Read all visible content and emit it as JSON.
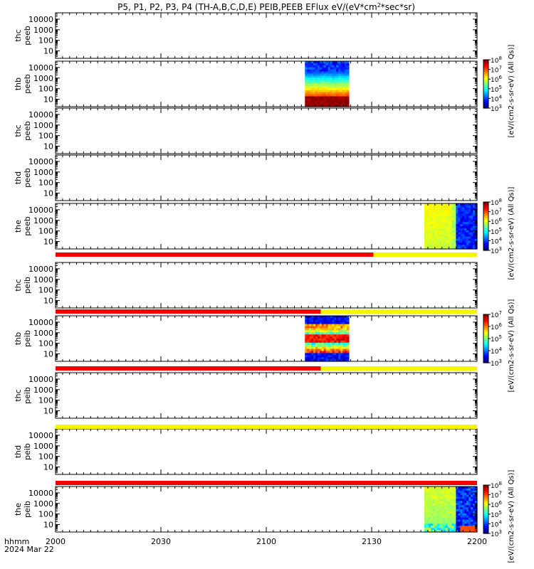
{
  "title": "P5, P1, P2, P3, P4 (TH-A,B,C,D,E) PEIB,PEEB EFlux eV/(eV*cm^2*sec*sr)",
  "title_parts": {
    "pre": "P5, P1, P2, P3, P4 (TH-A,B,C,D,E) PEIB,PEEB EFlux eV/(eV*cm",
    "sup": "2",
    "post": "*sec*sr)"
  },
  "time_axis": {
    "label_line1": "hhmm",
    "label_line2": "2024 Mar 22",
    "ticks": [
      "2000",
      "2030",
      "2100",
      "2130",
      "2200"
    ],
    "tick_minutes": [
      0,
      30,
      60,
      90,
      120
    ],
    "range_minutes": [
      0,
      120
    ]
  },
  "colors": {
    "mode_red": "#ee0000",
    "mode_yellow": "#f5f500",
    "axis": "#000000"
  },
  "chart_data": {
    "type": "heatmap",
    "x_units": "minutes after 20:00 UT",
    "y_scale": "log",
    "y_ticks": [
      "10",
      "100",
      "1000",
      "10000"
    ],
    "y_tick_values": [
      10,
      100,
      1000,
      10000
    ],
    "panels": [
      {
        "probe": "thc",
        "product": "peeb",
        "label": [
          "thc",
          "peeb"
        ],
        "data_span": null,
        "data_style": null
      },
      {
        "probe": "thb",
        "product": "peeb",
        "label": [
          "thb",
          "peeb"
        ],
        "data_span": [
          71,
          83.5
        ],
        "data_style": "peeb_b",
        "mode_bar": null
      },
      {
        "probe": "thc",
        "product": "peeb",
        "label": [
          "thc",
          "peeb"
        ],
        "data_span": null
      },
      {
        "probe": "thd",
        "product": "peeb",
        "label": [
          "thd",
          "peeb"
        ],
        "data_span": null
      },
      {
        "probe": "the",
        "product": "peeb",
        "label": [
          "the",
          "peeb"
        ],
        "data_span": [
          105,
          120
        ],
        "data_style": "peeb_e",
        "mode_bar": [
          {
            "from": 0,
            "to": 90.5,
            "color": "red"
          },
          {
            "from": 90.5,
            "to": 120,
            "color": "yellow"
          }
        ]
      },
      {
        "probe": "thc",
        "product": "peib",
        "label": [
          "thc",
          "peib"
        ],
        "data_span": null,
        "mode_bar": [
          {
            "from": 0,
            "to": 75.5,
            "color": "red"
          },
          {
            "from": 75.5,
            "to": 120,
            "color": "yellow"
          }
        ]
      },
      {
        "probe": "thb",
        "product": "peib",
        "label": [
          "thb",
          "peib"
        ],
        "data_span": [
          71,
          83.5
        ],
        "data_style": "peib_b",
        "mode_bar": [
          {
            "from": 0,
            "to": 75.5,
            "color": "red"
          },
          {
            "from": 75.5,
            "to": 120,
            "color": "yellow"
          }
        ]
      },
      {
        "probe": "thc",
        "product": "peib",
        "label": [
          "thc",
          "peib"
        ],
        "data_span": null,
        "mode_bar": [
          {
            "from": 0,
            "to": 120,
            "color": "yellow"
          }
        ]
      },
      {
        "probe": "thd",
        "product": "peib",
        "label": [
          "thd",
          "peib"
        ],
        "data_span": null,
        "mode_bar": [
          {
            "from": 0,
            "to": 120,
            "color": "red"
          }
        ]
      },
      {
        "probe": "the",
        "product": "peib",
        "label": [
          "the",
          "peib"
        ],
        "data_span": [
          105,
          120
        ],
        "data_style": "peib_e"
      }
    ],
    "colorbars": [
      {
        "panel": 1,
        "label": "[eV/(cm2-s-sr-eV) (All Qs)]",
        "ticks": [
          "10^3",
          "10^4",
          "10^5",
          "10^6",
          "10^7",
          "10^8"
        ],
        "decade_range": [
          3,
          8
        ]
      },
      {
        "panel": 4,
        "label": "[eV/(cm2-s-sr-eV) (All Qs)]",
        "ticks": [
          "10^3",
          "10^4",
          "10^5",
          "10^6",
          "10^7",
          "10^8"
        ],
        "decade_range": [
          3,
          8
        ]
      },
      {
        "panel": 6,
        "label": "[eV/(cm2-s-sr-eV) (All Qs)]",
        "ticks": [
          "10^3",
          "10^4",
          "10^5",
          "10^6",
          "10^7"
        ],
        "decade_range": [
          3,
          7
        ]
      },
      {
        "panel": 9,
        "label": "[eV/(cm2-s-sr-eV) (All Qs)]",
        "ticks": [
          "10^3",
          "10^4",
          "10^5",
          "10^6",
          "10^7",
          "10^8"
        ],
        "decade_range": [
          3,
          8
        ]
      }
    ]
  }
}
